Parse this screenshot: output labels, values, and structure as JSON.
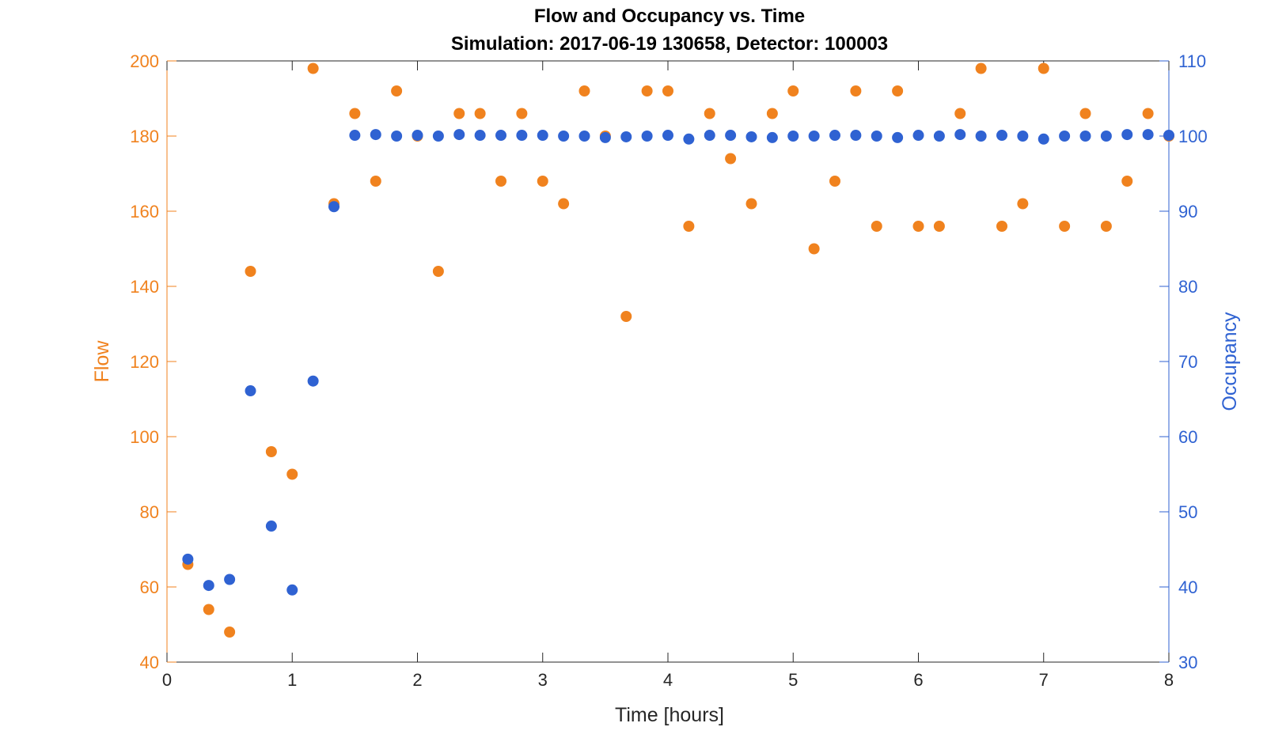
{
  "chart_data": {
    "type": "scatter",
    "title": "Flow and Occupancy vs. Time",
    "subtitle": "Simulation:  2017-06-19 130658,  Detector:  100003",
    "xlabel": "Time [hours]",
    "ylabel_left": "Flow",
    "ylabel_right": "Occupancy",
    "xlim": [
      0,
      8
    ],
    "ylim_left": [
      40,
      200
    ],
    "ylim_right": [
      30,
      110
    ],
    "xticks": [
      0,
      1,
      2,
      3,
      4,
      5,
      6,
      7,
      8
    ],
    "yticks_left": [
      40,
      60,
      80,
      100,
      120,
      140,
      160,
      180,
      200
    ],
    "yticks_right": [
      30,
      40,
      50,
      60,
      70,
      80,
      90,
      100,
      110
    ],
    "grid": false,
    "colors": {
      "flow": "#f0821e",
      "occupancy": "#2f62d2"
    },
    "series": [
      {
        "name": "Flow",
        "axis": "left",
        "x": [
          0.1667,
          0.3333,
          0.5,
          0.6667,
          0.8333,
          1.0,
          1.1667,
          1.3333,
          1.5,
          1.6667,
          1.8333,
          2.0,
          2.1667,
          2.3333,
          2.5,
          2.6667,
          2.8333,
          3.0,
          3.1667,
          3.3333,
          3.5,
          3.6667,
          3.8333,
          4.0,
          4.1667,
          4.3333,
          4.5,
          4.6667,
          4.8333,
          5.0,
          5.1667,
          5.3333,
          5.5,
          5.6667,
          5.8333,
          6.0,
          6.1667,
          6.3333,
          6.5,
          6.6667,
          6.8333,
          7.0,
          7.1667,
          7.3333,
          7.5,
          7.6667,
          7.8333,
          8.0
        ],
        "y": [
          66,
          54,
          48,
          144,
          96,
          90,
          198,
          162,
          186,
          168,
          192,
          180,
          144,
          186,
          186,
          168,
          186,
          168,
          162,
          192,
          180,
          132,
          192,
          192,
          156,
          186,
          174,
          162,
          186,
          192,
          150,
          168,
          192,
          156,
          192,
          156,
          156,
          186,
          198,
          156,
          162,
          198,
          156,
          186,
          156,
          168,
          186,
          180
        ]
      },
      {
        "name": "Occupancy",
        "axis": "right",
        "x": [
          0.1667,
          0.3333,
          0.5,
          0.6667,
          0.8333,
          1.0,
          1.1667,
          1.3333,
          1.5,
          1.6667,
          1.8333,
          2.0,
          2.1667,
          2.3333,
          2.5,
          2.6667,
          2.8333,
          3.0,
          3.1667,
          3.3333,
          3.5,
          3.6667,
          3.8333,
          4.0,
          4.1667,
          4.3333,
          4.5,
          4.6667,
          4.8333,
          5.0,
          5.1667,
          5.3333,
          5.5,
          5.6667,
          5.8333,
          6.0,
          6.1667,
          6.3333,
          6.5,
          6.6667,
          6.8333,
          7.0,
          7.1667,
          7.3333,
          7.5,
          7.6667,
          7.8333,
          8.0
        ],
        "y": [
          43.7,
          40.2,
          41.0,
          66.1,
          48.1,
          39.6,
          67.4,
          90.6,
          100.1,
          100.2,
          100.0,
          100.1,
          100.0,
          100.2,
          100.1,
          100.1,
          100.1,
          100.1,
          100.0,
          100.0,
          99.8,
          99.9,
          100.0,
          100.1,
          99.6,
          100.1,
          100.1,
          99.9,
          99.8,
          100.0,
          100.0,
          100.1,
          100.1,
          100.0,
          99.8,
          100.1,
          100.0,
          100.2,
          100.0,
          100.1,
          100.0,
          99.6,
          100.0,
          100.0,
          100.0,
          100.2,
          100.2,
          100.1
        ]
      }
    ]
  }
}
